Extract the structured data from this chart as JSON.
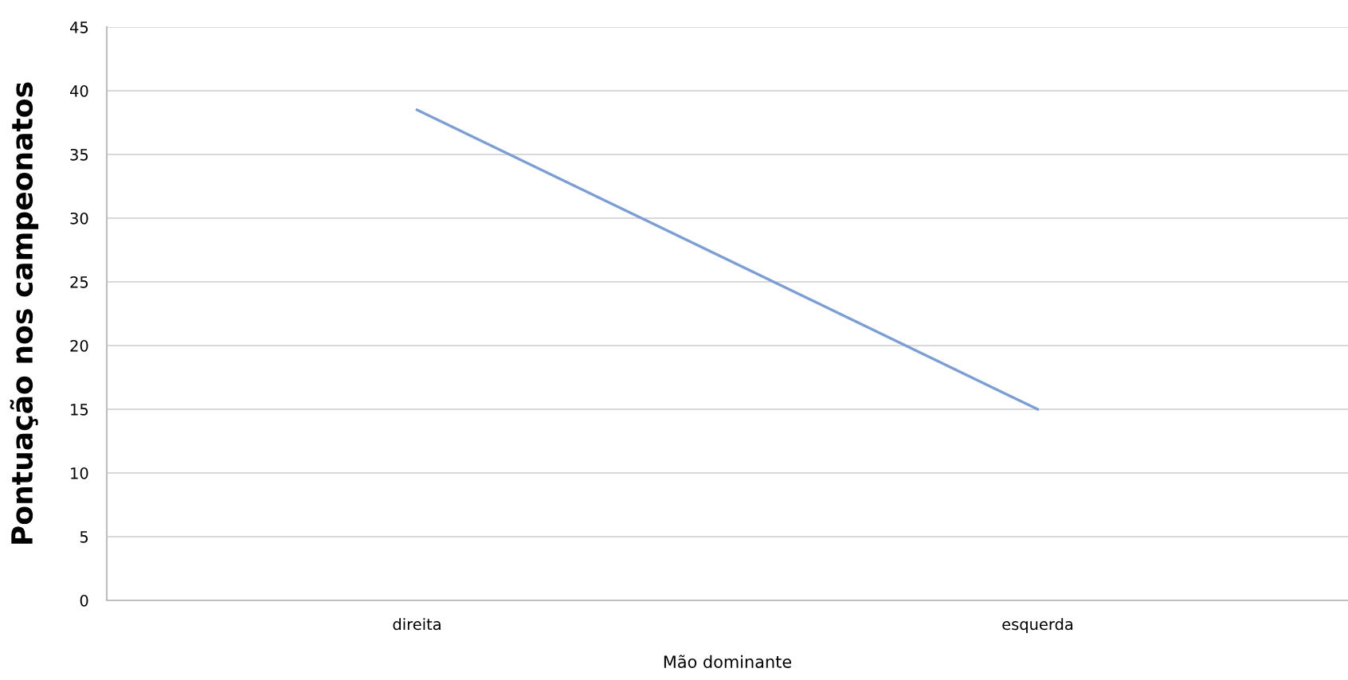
{
  "chart_data": {
    "type": "line",
    "categories": [
      "direita",
      "esquerda"
    ],
    "series": [
      {
        "color": "#7b9fd4",
        "values": [
          38.5,
          15
        ]
      }
    ],
    "xlabel": "Mão dominante",
    "ylabel": "Pontuação nos campeonatos",
    "ylim": [
      0,
      45
    ],
    "yticks": [
      0,
      5,
      10,
      15,
      20,
      25,
      30,
      35,
      40,
      45
    ],
    "grid": "y",
    "marker": "none",
    "line_style": "solid",
    "legend": false
  }
}
